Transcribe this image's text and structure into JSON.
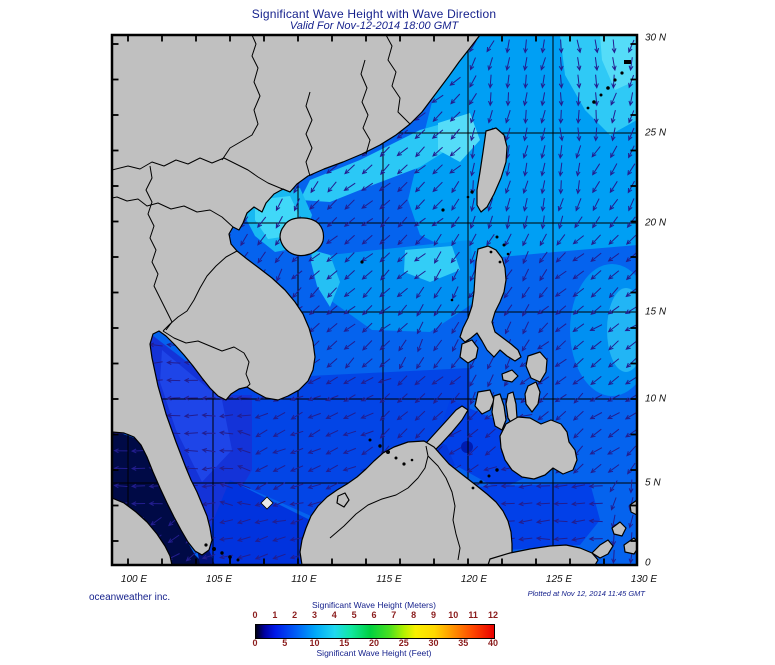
{
  "header": {
    "title": "Significant Wave Height with Wave Direction",
    "subtitle": "Valid For Nov-12-2014 18:00 GMT"
  },
  "axes": {
    "lat": [
      "30 N",
      "25 N",
      "20 N",
      "15 N",
      "10 N",
      "5 N",
      "0"
    ],
    "lon": [
      "100 E",
      "105 E",
      "110 E",
      "115 E",
      "120 E",
      "125 E",
      "130 E"
    ]
  },
  "legend": {
    "meters_label": "Significant Wave Height (Meters)",
    "feet_label": "Significant Wave Height (Feet)",
    "meters_ticks": [
      "0",
      "1",
      "2",
      "3",
      "4",
      "5",
      "6",
      "7",
      "8",
      "9",
      "10",
      "11",
      "12"
    ],
    "feet_ticks": [
      "0",
      "5",
      "10",
      "15",
      "20",
      "25",
      "30",
      "35",
      "40"
    ]
  },
  "footer": {
    "credit": "oceanweather inc.",
    "plotted_at": "Plotted at Nov 12, 2014 11:45 GMT"
  },
  "colors": {
    "ocean_base": "#0563ee",
    "land": "#c0c0c0",
    "arrow": "#231d8f",
    "navy_text": "#131f8b",
    "legend_tick_red": "#8b1d1d"
  }
}
